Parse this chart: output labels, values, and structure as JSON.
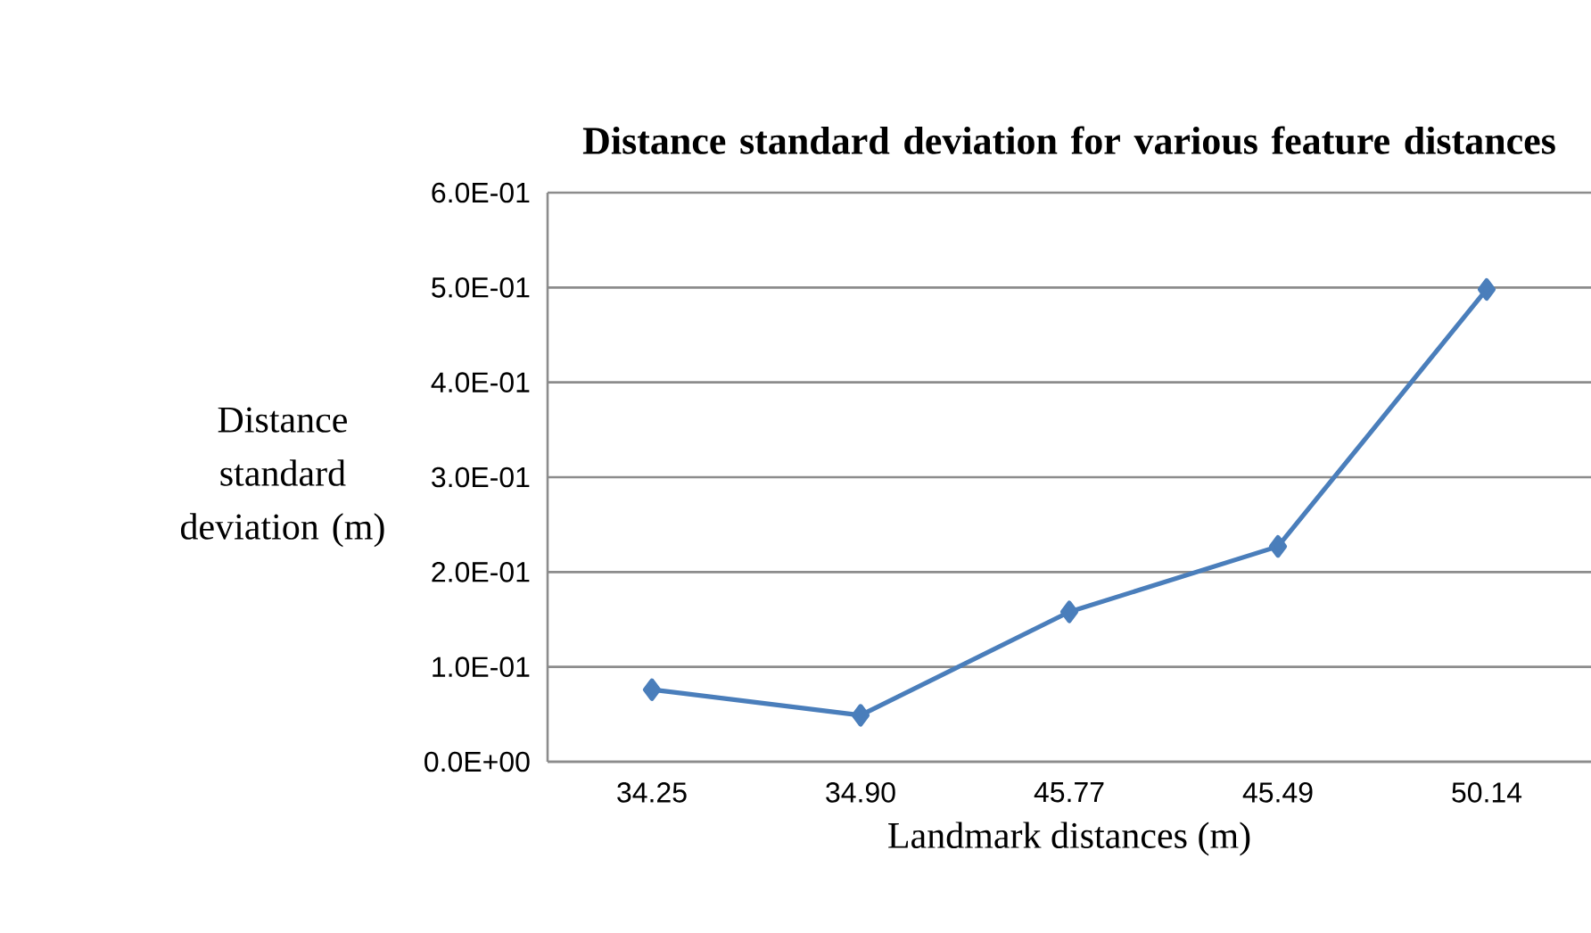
{
  "chart_data": {
    "type": "line",
    "title": "Distance standard deviation for various feature distances",
    "xlabel": "Landmark distances (m)",
    "ylabel": "Distance standard deviation (m)",
    "categories": [
      "34.25",
      "34.90",
      "45.77",
      "45.49",
      "50.14"
    ],
    "series": [
      {
        "color": "#4a7ebb",
        "values": [
          0.076,
          0.049,
          0.158,
          0.227,
          0.498
        ]
      }
    ],
    "ylim": [
      0,
      0.6
    ],
    "yticks": [
      {
        "value": 0,
        "label": "0.0E+00"
      },
      {
        "value": 0.1,
        "label": "1.0E-01"
      },
      {
        "value": 0.2,
        "label": "2.0E-01"
      },
      {
        "value": 0.3,
        "label": "3.0E-01"
      },
      {
        "value": 0.4,
        "label": "4.0E-01"
      },
      {
        "value": 0.5,
        "label": "5.0E-01"
      },
      {
        "value": 0.6,
        "label": "6.0E-01"
      }
    ],
    "grid": "y",
    "marker": "diamond",
    "line_style": "solid"
  }
}
